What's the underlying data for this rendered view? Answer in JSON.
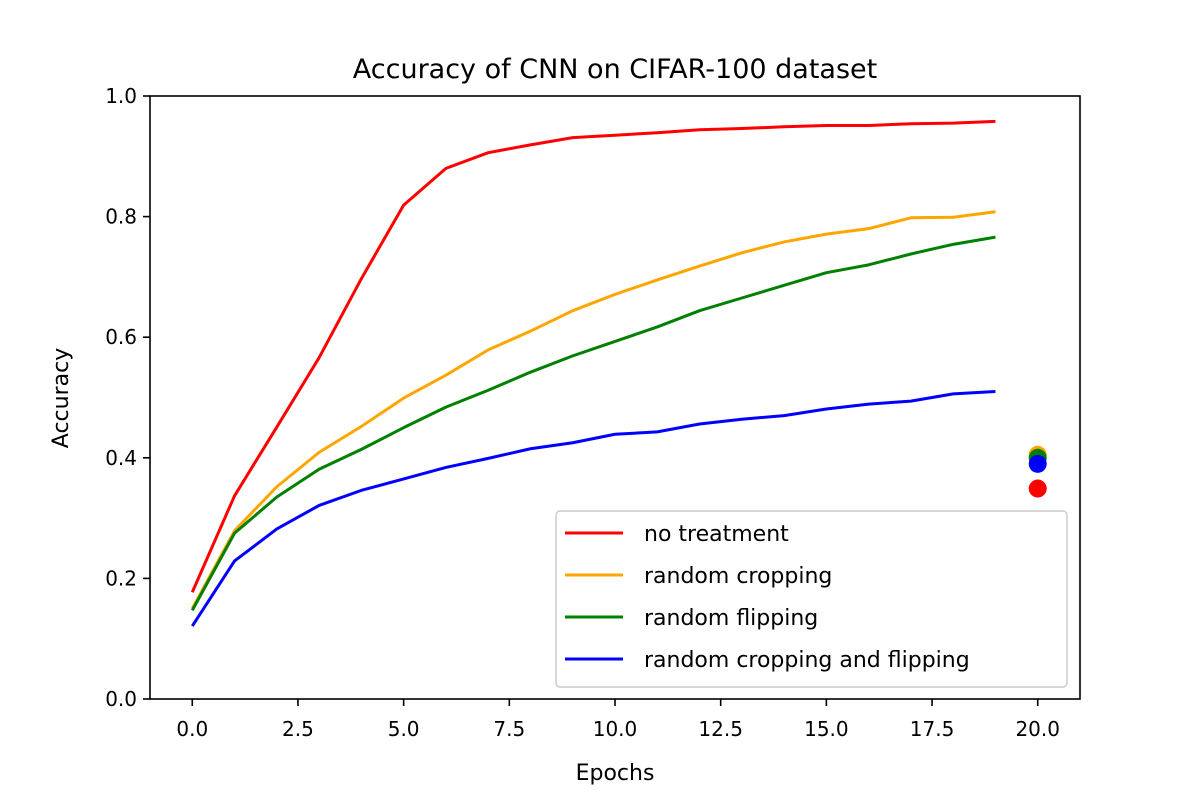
{
  "chart_data": {
    "type": "line",
    "title": "Accuracy of CNN on CIFAR-100 dataset",
    "xlabel": "Epochs",
    "ylabel": "Accuracy",
    "xlim": [
      -1.0,
      21.0
    ],
    "ylim": [
      0.0,
      1.0
    ],
    "xticks": [
      0.0,
      2.5,
      5.0,
      7.5,
      10.0,
      12.5,
      15.0,
      17.5,
      20.0
    ],
    "xtick_labels": [
      "0.0",
      "2.5",
      "5.0",
      "7.5",
      "10.0",
      "12.5",
      "15.0",
      "17.5",
      "20.0"
    ],
    "yticks": [
      0.0,
      0.2,
      0.4,
      0.6,
      0.8,
      1.0
    ],
    "ytick_labels": [
      "0.0",
      "0.2",
      "0.4",
      "0.6",
      "0.8",
      "1.0"
    ],
    "grid": false,
    "legend_position": "bottom-right",
    "x": [
      0,
      1,
      2,
      3,
      4,
      5,
      6,
      7,
      8,
      9,
      10,
      11,
      12,
      13,
      14,
      15,
      16,
      17,
      18,
      19
    ],
    "series": [
      {
        "name": "no treatment",
        "color": "#ff0000",
        "values": [
          0.177,
          0.337,
          0.451,
          0.566,
          0.697,
          0.819,
          0.88,
          0.906,
          0.919,
          0.931,
          0.935,
          0.939,
          0.944,
          0.946,
          0.949,
          0.951,
          0.951,
          0.954,
          0.955,
          0.958
        ],
        "test_point": {
          "x": 20,
          "y": 0.349
        }
      },
      {
        "name": "random cropping",
        "color": "#ffa500",
        "values": [
          0.15,
          0.279,
          0.352,
          0.409,
          0.452,
          0.499,
          0.537,
          0.579,
          0.61,
          0.644,
          0.671,
          0.695,
          0.718,
          0.74,
          0.758,
          0.771,
          0.78,
          0.798,
          0.799,
          0.808
        ],
        "test_point": {
          "x": 20,
          "y": 0.405
        }
      },
      {
        "name": "random flipping",
        "color": "#008000",
        "values": [
          0.147,
          0.275,
          0.335,
          0.381,
          0.414,
          0.45,
          0.484,
          0.512,
          0.542,
          0.569,
          0.593,
          0.617,
          0.644,
          0.665,
          0.686,
          0.707,
          0.72,
          0.738,
          0.754,
          0.766
        ],
        "test_point": {
          "x": 20,
          "y": 0.4
        }
      },
      {
        "name": "random cropping and flipping",
        "color": "#0000ff",
        "values": [
          0.121,
          0.229,
          0.282,
          0.321,
          0.346,
          0.365,
          0.384,
          0.399,
          0.415,
          0.425,
          0.439,
          0.443,
          0.456,
          0.464,
          0.47,
          0.481,
          0.489,
          0.494,
          0.506,
          0.51
        ],
        "test_point": {
          "x": 20,
          "y": 0.39
        }
      }
    ]
  }
}
